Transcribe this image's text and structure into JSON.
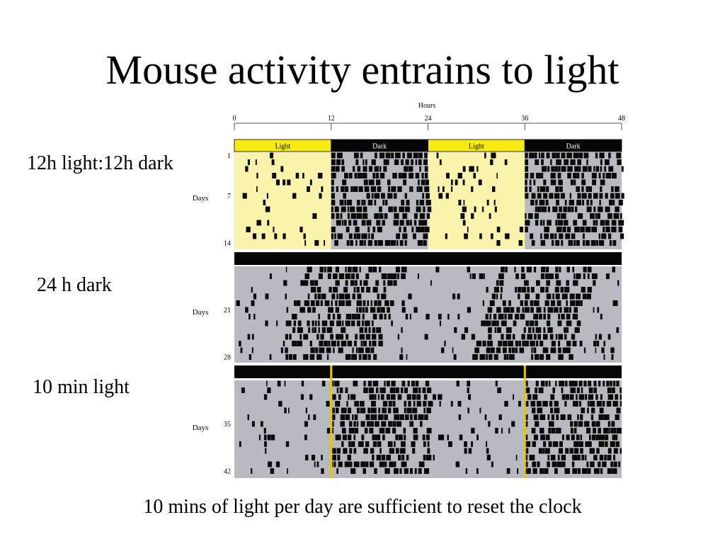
{
  "slide": {
    "title": "Mouse activity entrains to light",
    "caption": "10 mins of light per day are sufficient to reset the clock",
    "labels": {
      "light_dark": "12h light:12h dark",
      "dark_dark": "24 h dark",
      "pulse": "10 min light"
    }
  },
  "chart_data": {
    "type": "actogram",
    "title": "",
    "x_axis_label": "Hours",
    "y_axis_label": "Days",
    "xlim": [
      0,
      48
    ],
    "x_ticks": [
      0,
      12,
      24,
      36,
      48
    ],
    "ylim": [
      1,
      42
    ],
    "y_ticks": [
      1,
      7,
      14,
      21,
      28,
      35,
      42
    ],
    "colors": {
      "light": "#f6ea0e",
      "light_bg": "#f9f3ab",
      "dark": "#050505",
      "activity": "#0a0a0a",
      "rest_bg": "#b9b9c2",
      "pulse_line": "#e6c800"
    },
    "phases": [
      {
        "name": "12h light:12h dark",
        "days": [
          1,
          14
        ],
        "bar": [
          {
            "from": 0,
            "to": 12,
            "label": "Light"
          },
          {
            "from": 12,
            "to": 24,
            "label": "Dark"
          },
          {
            "from": 24,
            "to": 36,
            "label": "Light"
          },
          {
            "from": 36,
            "to": 48,
            "label": "Dark"
          }
        ],
        "activity_onset_hour": 12,
        "activity_offset_hour": 24
      },
      {
        "name": "24 h dark",
        "days": [
          15,
          28
        ],
        "activity_onset_day15": 9,
        "activity_onset_day28": 5.5,
        "free_running_period_h": 23.7
      },
      {
        "name": "10 min light",
        "days": [
          29,
          42
        ],
        "pulse_hours": [
          12,
          36
        ],
        "activity_onset_hour": 12,
        "activity_offset_hour": 24
      }
    ]
  }
}
